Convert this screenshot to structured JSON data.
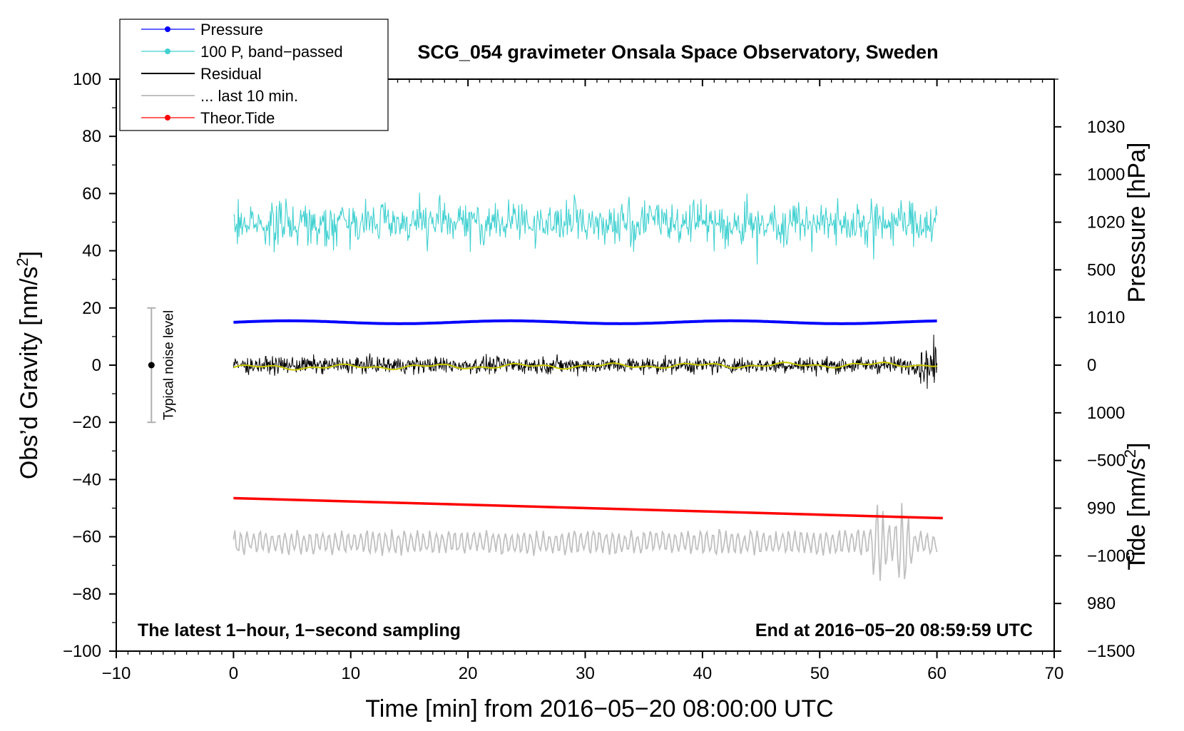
{
  "chart_data": {
    "type": "line",
    "title": "SCG_054 gravimeter Onsala Space Observatory, Sweden",
    "xlabel": "Time [min] from 2016−05−20 08:00:00 UTC",
    "ylabel_left": "Obs’d Gravity [nm/s",
    "ylabel_left_sup": "2",
    "ylabel_left_end": "]",
    "ylabel_right_top": "Pressure [hPa]",
    "ylabel_right_bottom": "Tide [nm/s",
    "ylabel_right_bottom_sup": "2",
    "ylabel_right_bottom_end": "]",
    "xlim": [
      -10,
      70
    ],
    "ylim": [
      -100,
      100
    ],
    "pressure_axis": [
      975,
      1035
    ],
    "tide_axis": [
      -1500,
      1500
    ],
    "grid": false,
    "legend_position": "top-left",
    "x_ticks": [
      -10,
      0,
      10,
      20,
      30,
      40,
      50,
      60,
      70
    ],
    "x_tick_labels": [
      "−10",
      "0",
      "10",
      "20",
      "30",
      "40",
      "50",
      "60",
      "70"
    ],
    "y_ticks": [
      -100,
      -80,
      -60,
      -40,
      -20,
      0,
      20,
      40,
      60,
      80,
      100
    ],
    "y_tick_labels": [
      "−100",
      "−80",
      "−60",
      "−40",
      "−20",
      "0",
      "20",
      "40",
      "60",
      "80",
      "100"
    ],
    "pressure_ticks": [
      980,
      990,
      1000,
      1010,
      1020,
      1030
    ],
    "pressure_tick_labels": [
      "980",
      "990",
      "1000",
      "1010",
      "1020",
      "1030"
    ],
    "tide_ticks": [
      -1500,
      -1000,
      -500,
      0,
      500,
      1000
    ],
    "tide_tick_labels": [
      "−1500",
      "−1000",
      "−500",
      "0",
      "500",
      "1000"
    ],
    "series": [
      {
        "name": "Pressure",
        "color": "#0000ff",
        "style": "line-dots",
        "x_range": [
          0,
          60
        ],
        "value_hPa": 1009.5
      },
      {
        "name": "100 P, band−passed",
        "color": "#40d0d0",
        "style": "noisy-line",
        "x_range": [
          0,
          60
        ],
        "center": 50,
        "amplitude": 8
      },
      {
        "name": "Residual",
        "color": "#000000",
        "style": "noisy-line",
        "x_range": [
          0,
          60
        ],
        "center": 0,
        "amplitude": 3.5
      },
      {
        "name": "... last 10 min.",
        "color": "#c0c0c0",
        "style": "wiggle-line",
        "x_range": [
          0,
          60
        ],
        "center": -62,
        "amplitude": 4
      },
      {
        "name": "Theor.Tide",
        "color": "#ff0000",
        "style": "line",
        "x": [
          0,
          60.5
        ],
        "y": [
          -46.5,
          -53.5
        ]
      }
    ],
    "smoothed_residual_color": "#c8c800",
    "noise_bar": {
      "label": "Typical noise level",
      "x": -7,
      "center": 0,
      "half_range": 20,
      "color": "#b0b0b0"
    },
    "annotations": {
      "left": "The latest 1−hour, 1−second sampling",
      "right": "End at 2016−05−20 08:59:59 UTC"
    }
  }
}
